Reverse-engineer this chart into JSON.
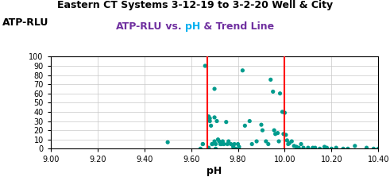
{
  "title": "Eastern CT Systems 3-12-19 to 3-2-20 Well & City",
  "ylabel": "ATP-RLU",
  "xlabel": "pH",
  "xlim": [
    9.0,
    10.4
  ],
  "ylim": [
    0,
    100
  ],
  "xticks": [
    9.0,
    9.2,
    9.4,
    9.6,
    9.8,
    10.0,
    10.2,
    10.4
  ],
  "yticks": [
    0,
    10,
    20,
    30,
    40,
    50,
    60,
    70,
    80,
    90,
    100
  ],
  "vline1": 9.67,
  "vline2": 10.0,
  "vline_color": "#FF0000",
  "dot_color": "#009B8D",
  "scatter_x": [
    9.5,
    9.64,
    9.65,
    9.65,
    9.66,
    9.675,
    9.675,
    9.68,
    9.68,
    9.685,
    9.69,
    9.69,
    9.7,
    9.7,
    9.7,
    9.705,
    9.705,
    9.71,
    9.715,
    9.72,
    9.725,
    9.73,
    9.735,
    9.74,
    9.75,
    9.755,
    9.76,
    9.77,
    9.78,
    9.785,
    9.79,
    9.8,
    9.805,
    9.82,
    9.83,
    9.85,
    9.86,
    9.88,
    9.9,
    9.905,
    9.92,
    9.93,
    9.94,
    9.95,
    9.955,
    9.96,
    9.97,
    9.975,
    9.98,
    9.99,
    9.995,
    10.0,
    10.005,
    10.01,
    10.015,
    10.02,
    10.03,
    10.04,
    10.05,
    10.06,
    10.07,
    10.08,
    10.1,
    10.12,
    10.13,
    10.15,
    10.17,
    10.18,
    10.2,
    10.22,
    10.25,
    10.27,
    10.3,
    10.35,
    10.38,
    10.4
  ],
  "scatter_y": [
    7,
    0,
    5,
    5,
    90,
    1,
    35,
    33,
    30,
    25,
    5,
    5,
    65,
    34,
    8,
    5,
    0,
    30,
    10,
    8,
    5,
    5,
    8,
    5,
    29,
    5,
    8,
    5,
    2,
    5,
    0,
    5,
    2,
    85,
    25,
    30,
    5,
    8,
    26,
    20,
    8,
    5,
    75,
    62,
    20,
    16,
    17,
    8,
    60,
    40,
    16,
    39,
    15,
    9,
    5,
    6,
    8,
    3,
    2,
    1,
    5,
    1,
    1,
    1,
    1,
    0,
    2,
    1,
    0,
    1,
    0,
    0,
    3,
    1,
    0,
    0
  ],
  "title_color": "#000000",
  "subtitle_color_purple": "#7030A0",
  "subtitle_color_cyan": "#00B0F0",
  "ylabel_color": "#000000",
  "xlabel_color": "#000000",
  "bg_color": "#FFFFFF",
  "grid_color": "#C8C8C8",
  "subtitle_parts": [
    {
      "text": "ATP-RLU",
      "color": "#7030A0"
    },
    {
      "text": " vs. ",
      "color": "#7030A0"
    },
    {
      "text": "pH",
      "color": "#00B0F0"
    },
    {
      "text": " & Trend Line",
      "color": "#7030A0"
    }
  ]
}
